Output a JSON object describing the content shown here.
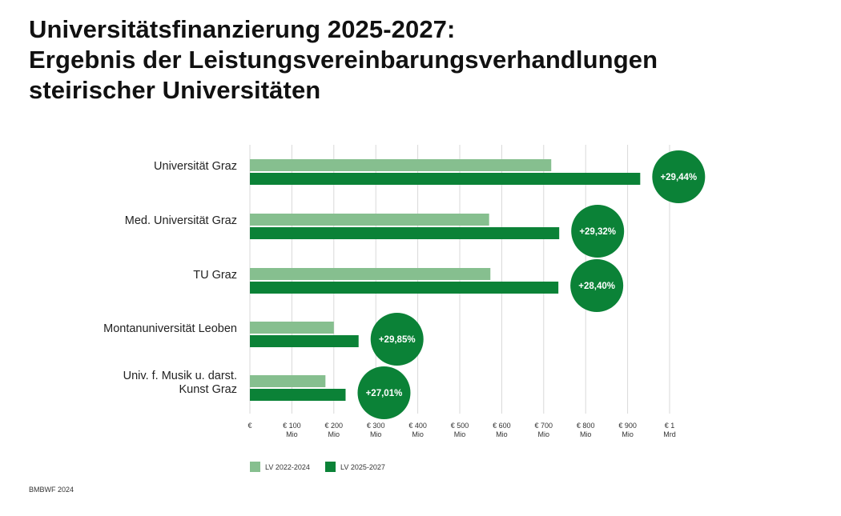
{
  "title_lines": [
    "Universitätsfinanzierung 2025-2027:",
    "Ergebnis der Leistungsvereinbarungsverhandlungen",
    "steirischer Universitäten"
  ],
  "source": "BMBWF 2024",
  "colors": {
    "light": "#86bf8f",
    "dark": "#0b8237",
    "grid": "#d9d9d9"
  },
  "chart_data": {
    "type": "bar",
    "orientation": "horizontal",
    "categories": [
      [
        "Universität Graz"
      ],
      [
        "Med. Universität Graz"
      ],
      [
        "TU Graz"
      ],
      [
        "Montanuniversität Leoben"
      ],
      [
        "Univ. f. Musik u. darst.",
        "Kunst Graz"
      ]
    ],
    "series": [
      {
        "name": "LV 2022-2024",
        "values": [
          718,
          570,
          573,
          200,
          180
        ]
      },
      {
        "name": "LV 2025-2027",
        "values": [
          930,
          737,
          735,
          259,
          228
        ]
      }
    ],
    "annotations": [
      "+29,44%",
      "+29,32%",
      "+28,40%",
      "+29,85%",
      "+27,01%"
    ],
    "xlim": [
      0,
      1000
    ],
    "x_unit": "Mio €",
    "x_ticks": [
      {
        "value": 0,
        "lines": [
          "€"
        ]
      },
      {
        "value": 100,
        "lines": [
          "€ 100",
          "Mio"
        ]
      },
      {
        "value": 200,
        "lines": [
          "€ 200",
          "Mio"
        ]
      },
      {
        "value": 300,
        "lines": [
          "€ 300",
          "Mio"
        ]
      },
      {
        "value": 400,
        "lines": [
          "€ 400",
          "Mio"
        ]
      },
      {
        "value": 500,
        "lines": [
          "€ 500",
          "Mio"
        ]
      },
      {
        "value": 600,
        "lines": [
          "€ 600",
          "Mio"
        ]
      },
      {
        "value": 700,
        "lines": [
          "€ 700",
          "Mio"
        ]
      },
      {
        "value": 800,
        "lines": [
          "€ 800",
          "Mio"
        ]
      },
      {
        "value": 900,
        "lines": [
          "€ 900",
          "Mio"
        ]
      },
      {
        "value": 1000,
        "lines": [
          "€ 1",
          "Mrd"
        ]
      }
    ],
    "grid": true,
    "legend_position": "bottom-left"
  }
}
